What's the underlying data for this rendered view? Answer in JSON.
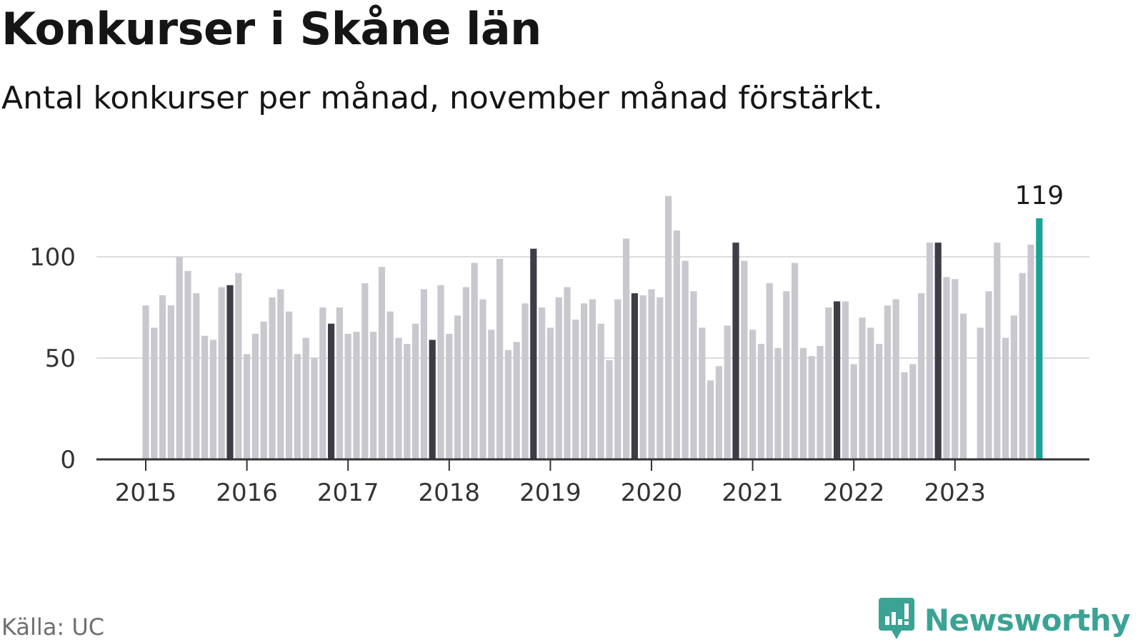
{
  "header": {
    "title": "Konkurser i Skåne län",
    "subtitle": "Antal konkurser per månad, november månad förstärkt."
  },
  "footer": {
    "source": "Källa: UC",
    "brand": "Newsworthy",
    "brand_icon": "bar-chart-speech-bubble-icon"
  },
  "colors": {
    "normal": "#c8c8ce",
    "november": "#3d3d48",
    "latest": "#1aa394",
    "grid": "#dcdcdc",
    "axis": "#333333",
    "brand": "#3aa394"
  },
  "chart_data": {
    "type": "bar",
    "title": "Konkurser i Skåne län",
    "subtitle": "Antal konkurser per månad, november månad förstärkt.",
    "start": "2015-01",
    "xlabel": "",
    "ylabel": "",
    "ylim": [
      0,
      130
    ],
    "yticks": [
      0,
      50,
      100
    ],
    "xtick_labels": [
      "2015",
      "2016",
      "2017",
      "2018",
      "2019",
      "2020",
      "2021",
      "2022",
      "2023"
    ],
    "grid": true,
    "highlight_month": "november",
    "annotation": {
      "label": "119",
      "month": "2023-11"
    },
    "values": [
      76,
      65,
      81,
      76,
      100,
      93,
      82,
      61,
      59,
      85,
      86,
      92,
      52,
      62,
      68,
      80,
      84,
      73,
      52,
      60,
      50,
      75,
      67,
      75,
      62,
      63,
      87,
      63,
      95,
      73,
      60,
      57,
      67,
      84,
      59,
      86,
      62,
      71,
      85,
      97,
      79,
      64,
      99,
      54,
      58,
      77,
      104,
      75,
      65,
      80,
      85,
      69,
      77,
      79,
      67,
      49,
      79,
      109,
      82,
      81,
      84,
      80,
      130,
      113,
      98,
      83,
      65,
      39,
      46,
      66,
      107,
      98,
      64,
      57,
      87,
      55,
      83,
      97,
      55,
      51,
      56,
      75,
      78,
      78,
      47,
      70,
      65,
      57,
      76,
      79,
      43,
      47,
      82,
      107,
      107,
      90,
      89,
      72,
      0,
      65,
      83,
      107,
      60,
      71,
      92,
      106,
      119
    ]
  }
}
